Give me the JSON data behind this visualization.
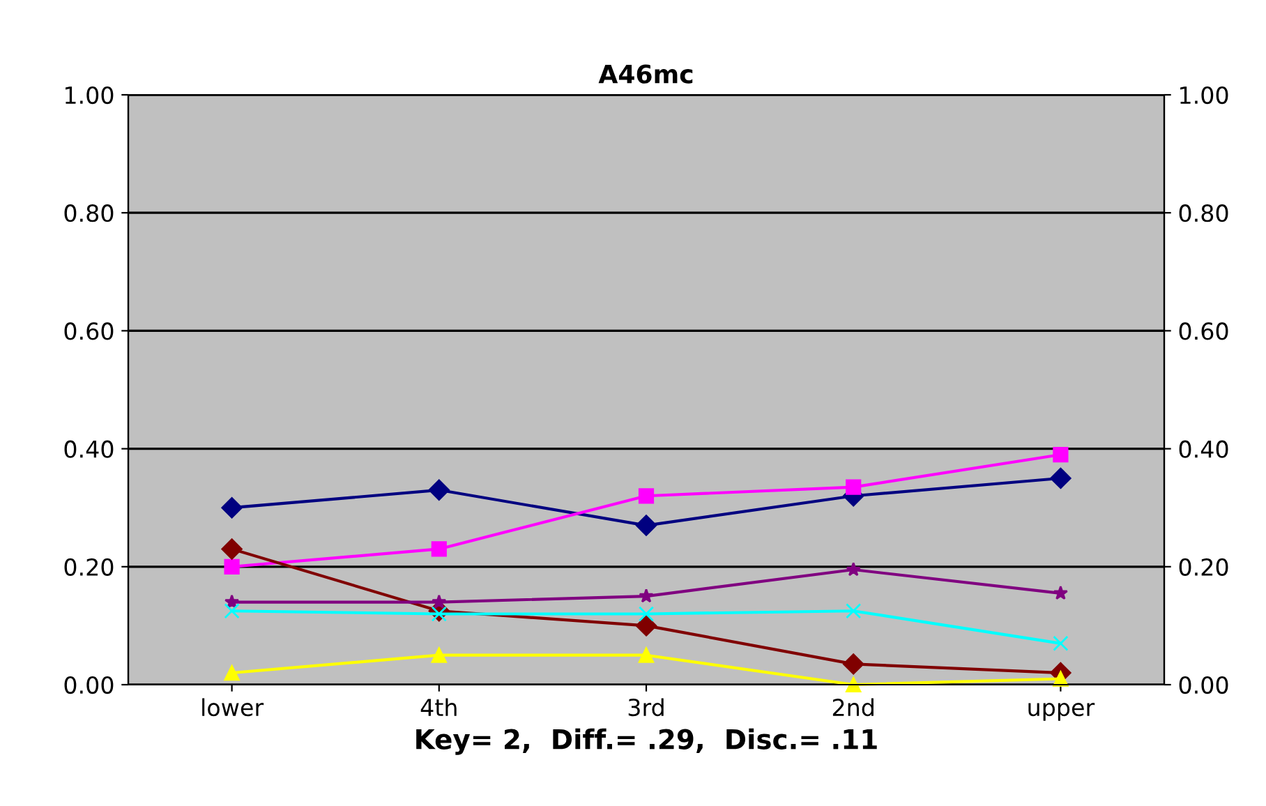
{
  "chart_data": {
    "type": "line",
    "title": "A46mc",
    "xlabel": "Key= 2,  Diff.= .29,  Disc.= .11",
    "categories": [
      "lower",
      "4th",
      "3rd",
      "2nd",
      "upper"
    ],
    "series": [
      {
        "color": "#000080",
        "marker": "diamond",
        "values": [
          0.3,
          0.33,
          0.27,
          0.32,
          0.35
        ]
      },
      {
        "color": "#ff00ff",
        "marker": "square",
        "values": [
          0.2,
          0.23,
          0.32,
          0.335,
          0.39
        ]
      },
      {
        "color": "#800000",
        "marker": "diamond",
        "values": [
          0.23,
          0.125,
          0.1,
          0.035,
          0.02
        ]
      },
      {
        "color": "#800080",
        "marker": "star",
        "values": [
          0.14,
          0.14,
          0.15,
          0.195,
          0.155
        ]
      },
      {
        "color": "#00ffff",
        "marker": "cross",
        "values": [
          0.125,
          0.12,
          0.12,
          0.125,
          0.07
        ]
      },
      {
        "color": "#ffff00",
        "marker": "triangle",
        "values": [
          0.02,
          0.05,
          0.05,
          0.0,
          0.01
        ]
      }
    ],
    "ylim": [
      0,
      1
    ],
    "yticks": [
      {
        "value": 0,
        "label": "0.00"
      },
      {
        "value": 0.2,
        "label": "0.20"
      },
      {
        "value": 0.4,
        "label": "0.40"
      },
      {
        "value": 0.6,
        "label": "0.60"
      },
      {
        "value": 0.8,
        "label": "0.80"
      },
      {
        "value": 1,
        "label": "1.00"
      }
    ],
    "y2lim": [
      0,
      1
    ],
    "y2ticks": [
      {
        "value": 0,
        "label": "0.00"
      },
      {
        "value": 0.2,
        "label": "0.20"
      },
      {
        "value": 0.4,
        "label": "0.40"
      },
      {
        "value": 0.6,
        "label": "0.60"
      },
      {
        "value": 0.8,
        "label": "0.80"
      },
      {
        "value": 1,
        "label": "1.00"
      }
    ],
    "grid": "y",
    "legend": false,
    "line_style": "solid"
  }
}
